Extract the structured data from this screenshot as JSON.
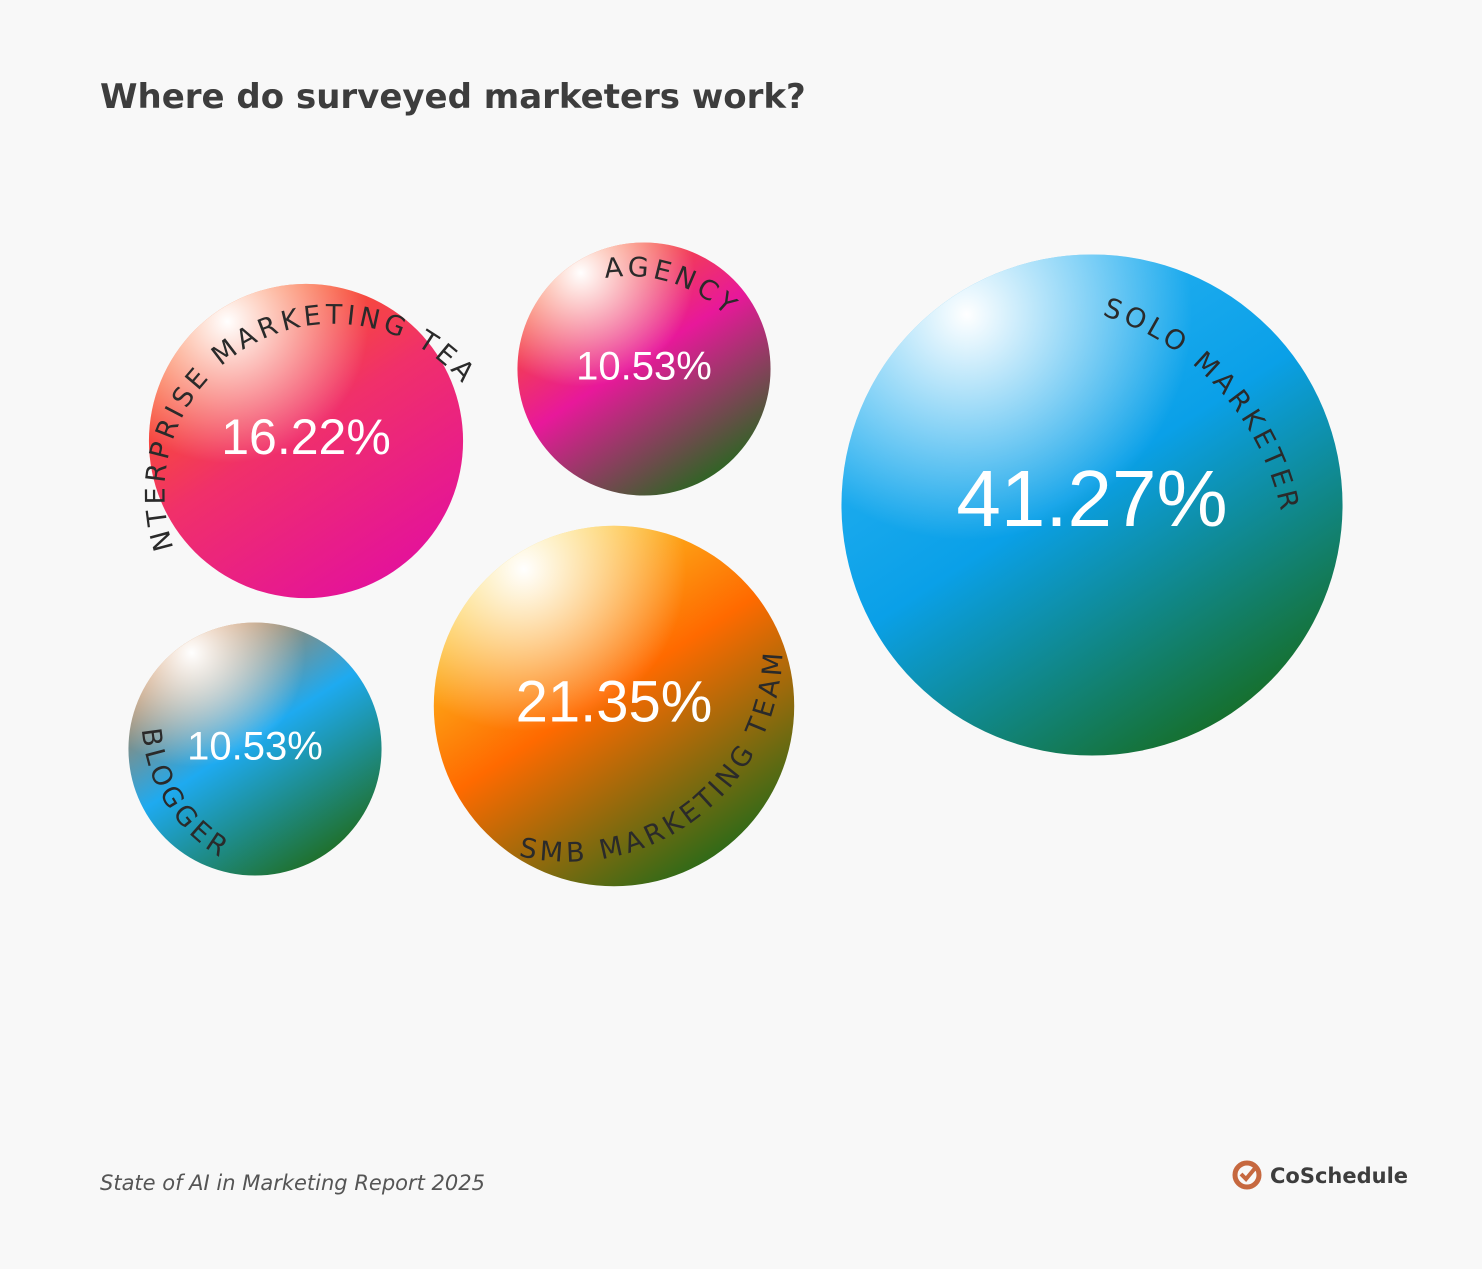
{
  "chart_data": {
    "type": "bubble",
    "title": "Where do surveyed marketers work?",
    "categories": [
      "ENTERPRISE MARKETING TEAM",
      "AGENCY",
      "SOLO MARKETER",
      "SMB MARKETING TEAM",
      "BLOGGER"
    ],
    "values": [
      16.22,
      10.53,
      41.27,
      21.35,
      10.53
    ],
    "value_labels": [
      "16.22%",
      "10.53%",
      "41.27%",
      "21.35%",
      "10.53%"
    ],
    "colors": [
      [
        "#ff6a00",
        "#f0306a",
        "#e3109e"
      ],
      [
        "#ff6a00",
        "#e8189a",
        "#1f6b1a"
      ],
      [
        "#33b8f5",
        "#0aa0e8",
        "#176b1c"
      ],
      [
        "#fbe830",
        "#ff6a00",
        "#1c6a1a"
      ],
      [
        "#ff6a00",
        "#1eaaf0",
        "#1f6b1a"
      ]
    ],
    "source": "State of AI in Marketing Report 2025",
    "brand": "CoSchedule"
  }
}
